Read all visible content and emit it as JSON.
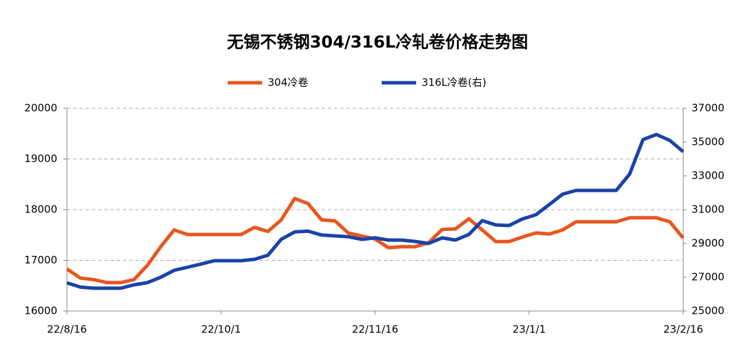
{
  "chart_data": {
    "type": "line",
    "title": "无锡不锈钢304/316L冷轧卷价格走势图",
    "x": [
      "2022-08-16",
      "2022-08-20",
      "2022-08-24",
      "2022-08-28",
      "2022-09-01",
      "2022-09-05",
      "2022-09-09",
      "2022-09-13",
      "2022-09-17",
      "2022-09-21",
      "2022-09-25",
      "2022-09-29",
      "2022-10-03",
      "2022-10-07",
      "2022-10-11",
      "2022-10-15",
      "2022-10-19",
      "2022-10-23",
      "2022-10-27",
      "2022-10-31",
      "2022-11-04",
      "2022-11-08",
      "2022-11-12",
      "2022-11-16",
      "2022-11-20",
      "2022-11-24",
      "2022-11-28",
      "2022-12-02",
      "2022-12-06",
      "2022-12-10",
      "2022-12-14",
      "2022-12-18",
      "2022-12-22",
      "2022-12-26",
      "2022-12-30",
      "2023-01-03",
      "2023-01-07",
      "2023-01-11",
      "2023-01-15",
      "2023-01-19",
      "2023-01-23",
      "2023-01-27",
      "2023-01-31",
      "2023-02-04",
      "2023-02-08",
      "2023-02-12",
      "2023-02-16"
    ],
    "series": [
      {
        "name": "304冷卷",
        "color": "#e8561e",
        "values": [
          16830,
          16650,
          16620,
          16560,
          16560,
          16620,
          16900,
          17270,
          17600,
          17510,
          17510,
          17510,
          17510,
          17510,
          17650,
          17570,
          17800,
          18220,
          18120,
          17800,
          17780,
          17540,
          17480,
          17420,
          17250,
          17270,
          17270,
          17350,
          17610,
          17620,
          17820,
          17600,
          17370,
          17370,
          17460,
          17540,
          17520,
          17600,
          17760,
          17760,
          17760,
          17760,
          17840,
          17840,
          17840,
          17760,
          17440
        ]
      },
      {
        "name": "316L冷卷(右)",
        "color": "#1a43a8",
        "axis": "y2",
        "values": [
          26670,
          26420,
          26350,
          26350,
          26350,
          26550,
          26680,
          27000,
          27410,
          27590,
          27780,
          27980,
          27980,
          27980,
          28060,
          28300,
          29250,
          29680,
          29730,
          29500,
          29450,
          29400,
          29240,
          29330,
          29200,
          29200,
          29120,
          29000,
          29330,
          29200,
          29530,
          30350,
          30100,
          30060,
          30450,
          30700,
          31300,
          31920,
          32140,
          32140,
          32140,
          32140,
          33100,
          35150,
          35450,
          35100,
          34430
        ]
      }
    ],
    "xlim": [
      "2022-08-16",
      "2023-02-16"
    ],
    "xticks": [
      {
        "value": "2022-08-16",
        "label": "22/8/16"
      },
      {
        "value": "2022-10-01",
        "label": "22/10/1"
      },
      {
        "value": "2022-11-16",
        "label": "22/11/16"
      },
      {
        "value": "2023-01-01",
        "label": "23/1/1"
      },
      {
        "value": "2023-02-16",
        "label": "23/2/16"
      }
    ],
    "ylim": [
      16000,
      20000
    ],
    "yticks": [
      16000,
      17000,
      18000,
      19000,
      20000
    ],
    "y2lim": [
      25000,
      37000
    ],
    "y2ticks": [
      25000,
      27000,
      29000,
      31000,
      33000,
      35000,
      37000
    ],
    "grid": true,
    "legend": "top"
  }
}
